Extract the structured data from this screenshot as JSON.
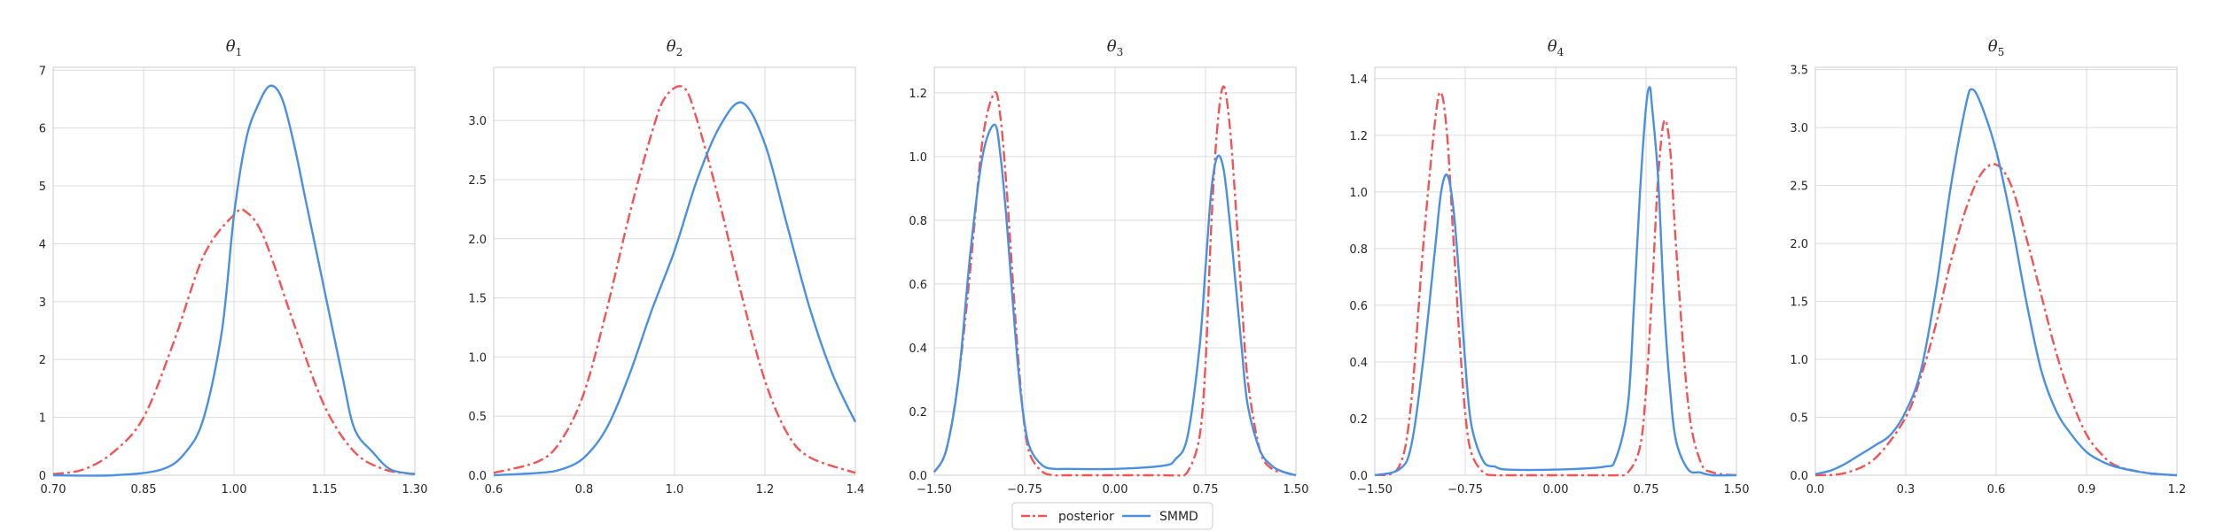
{
  "chart_data": [
    {
      "type": "line",
      "title": "θ",
      "title_sub": "1",
      "xlim": [
        0.7,
        1.3
      ],
      "ylim": [
        0,
        7.05
      ],
      "xticks": [
        0.7,
        0.85,
        1.0,
        1.15,
        1.3
      ],
      "xtick_labels": [
        "0.70",
        "0.85",
        "1.00",
        "1.15",
        "1.30"
      ],
      "yticks": [
        0,
        1,
        2,
        3,
        4,
        5,
        6,
        7
      ],
      "ytick_labels": [
        "0",
        "1",
        "2",
        "3",
        "4",
        "5",
        "6",
        "7"
      ],
      "grid": true,
      "series": [
        {
          "name": "posterior",
          "style": "dashdot",
          "color": "#f05454",
          "x": [
            0.7,
            0.75,
            0.8,
            0.85,
            0.9,
            0.95,
            1.0,
            1.02,
            1.05,
            1.1,
            1.15,
            1.2,
            1.25,
            1.3
          ],
          "y": [
            0.02,
            0.1,
            0.4,
            1.0,
            2.3,
            3.8,
            4.5,
            4.55,
            4.1,
            2.6,
            1.2,
            0.4,
            0.1,
            0.02
          ]
        },
        {
          "name": "SMMD",
          "style": "solid",
          "color": "#4a90e2",
          "x": [
            0.7,
            0.8,
            0.88,
            0.92,
            0.95,
            0.98,
            1.0,
            1.02,
            1.04,
            1.06,
            1.08,
            1.1,
            1.12,
            1.15,
            1.18,
            1.2,
            1.23,
            1.26,
            1.3
          ],
          "y": [
            0.0,
            0.0,
            0.1,
            0.4,
            1.0,
            2.5,
            4.5,
            5.8,
            6.4,
            6.73,
            6.5,
            5.7,
            4.7,
            3.2,
            1.7,
            0.8,
            0.4,
            0.1,
            0.02
          ]
        }
      ]
    },
    {
      "type": "line",
      "title": "θ",
      "title_sub": "2",
      "xlim": [
        0.6,
        1.4
      ],
      "ylim": [
        0,
        3.45
      ],
      "xticks": [
        0.6,
        0.8,
        1.0,
        1.2,
        1.4
      ],
      "xtick_labels": [
        "0.6",
        "0.8",
        "1.0",
        "1.2",
        "1.4"
      ],
      "yticks": [
        0,
        0.5,
        1.0,
        1.5,
        2.0,
        2.5,
        3.0
      ],
      "ytick_labels": [
        "0.0",
        "0.5",
        "1.0",
        "1.5",
        "2.0",
        "2.5",
        "3.0"
      ],
      "grid": true,
      "series": [
        {
          "name": "posterior",
          "style": "dashdot",
          "color": "#f05454",
          "x": [
            0.6,
            0.7,
            0.75,
            0.8,
            0.85,
            0.9,
            0.95,
            0.98,
            1.02,
            1.05,
            1.1,
            1.15,
            1.2,
            1.25,
            1.3,
            1.4
          ],
          "y": [
            0.02,
            0.12,
            0.3,
            0.7,
            1.4,
            2.2,
            2.9,
            3.2,
            3.28,
            3.0,
            2.3,
            1.5,
            0.8,
            0.35,
            0.15,
            0.02
          ]
        },
        {
          "name": "SMMD",
          "style": "solid",
          "color": "#4a90e2",
          "x": [
            0.6,
            0.7,
            0.75,
            0.8,
            0.85,
            0.9,
            0.95,
            1.0,
            1.05,
            1.1,
            1.15,
            1.2,
            1.25,
            1.3,
            1.35,
            1.4
          ],
          "y": [
            0.0,
            0.02,
            0.05,
            0.15,
            0.4,
            0.85,
            1.4,
            1.9,
            2.5,
            2.95,
            3.15,
            2.8,
            2.1,
            1.4,
            0.85,
            0.45
          ]
        }
      ]
    },
    {
      "type": "line",
      "title": "θ",
      "title_sub": "3",
      "xlim": [
        -1.5,
        1.5
      ],
      "ylim": [
        0,
        1.28
      ],
      "xticks": [
        -1.5,
        -0.75,
        0.0,
        0.75,
        1.5
      ],
      "xtick_labels": [
        "−1.50",
        "−0.75",
        "0.00",
        "0.75",
        "1.50"
      ],
      "yticks": [
        0,
        0.2,
        0.4,
        0.6,
        0.8,
        1.0,
        1.2
      ],
      "ytick_labels": [
        "0.0",
        "0.2",
        "0.4",
        "0.6",
        "0.8",
        "1.0",
        "1.2"
      ],
      "grid": true,
      "series": [
        {
          "name": "posterior",
          "style": "dashdot",
          "color": "#f05454",
          "x": [
            -1.5,
            -1.4,
            -1.3,
            -1.2,
            -1.1,
            -1.0,
            -0.95,
            -0.9,
            -0.85,
            -0.8,
            -0.75,
            -0.7,
            -0.6,
            -0.5,
            -0.4,
            0.0,
            0.4,
            0.5,
            0.6,
            0.7,
            0.75,
            0.8,
            0.85,
            0.9,
            0.95,
            1.0,
            1.05,
            1.1,
            1.2,
            1.3,
            1.4,
            1.5
          ],
          "y": [
            0.01,
            0.08,
            0.3,
            0.65,
            1.05,
            1.2,
            1.12,
            0.9,
            0.62,
            0.35,
            0.15,
            0.06,
            0.01,
            0.0,
            0.0,
            0.0,
            0.0,
            0.0,
            0.01,
            0.12,
            0.35,
            0.8,
            1.1,
            1.22,
            1.1,
            0.85,
            0.55,
            0.3,
            0.08,
            0.02,
            0.01,
            0.0
          ]
        },
        {
          "name": "SMMD",
          "style": "solid",
          "color": "#4a90e2",
          "x": [
            -1.5,
            -1.4,
            -1.3,
            -1.2,
            -1.1,
            -1.0,
            -0.95,
            -0.9,
            -0.85,
            -0.8,
            -0.75,
            -0.7,
            -0.6,
            -0.5,
            -0.4,
            0.0,
            0.4,
            0.5,
            0.6,
            0.7,
            0.75,
            0.8,
            0.85,
            0.9,
            0.95,
            1.0,
            1.05,
            1.1,
            1.2,
            1.3,
            1.4,
            1.5
          ],
          "y": [
            0.01,
            0.08,
            0.3,
            0.7,
            1.0,
            1.1,
            1.0,
            0.8,
            0.55,
            0.32,
            0.16,
            0.08,
            0.03,
            0.02,
            0.02,
            0.02,
            0.03,
            0.05,
            0.12,
            0.4,
            0.65,
            0.9,
            1.0,
            0.96,
            0.8,
            0.6,
            0.4,
            0.22,
            0.08,
            0.03,
            0.01,
            0.0
          ]
        }
      ]
    },
    {
      "type": "line",
      "title": "θ",
      "title_sub": "4",
      "xlim": [
        -1.5,
        1.5
      ],
      "ylim": [
        0,
        1.44
      ],
      "xticks": [
        -1.5,
        -0.75,
        0.0,
        0.75,
        1.5
      ],
      "xtick_labels": [
        "−1.50",
        "−0.75",
        "0.00",
        "0.75",
        "1.50"
      ],
      "yticks": [
        0,
        0.2,
        0.4,
        0.6,
        0.8,
        1.0,
        1.2,
        1.4
      ],
      "ytick_labels": [
        "0.0",
        "0.2",
        "0.4",
        "0.6",
        "0.8",
        "1.0",
        "1.2",
        "1.4"
      ],
      "grid": true,
      "series": [
        {
          "name": "posterior",
          "style": "dashdot",
          "color": "#f05454",
          "x": [
            -1.5,
            -1.3,
            -1.2,
            -1.1,
            -1.0,
            -0.95,
            -0.9,
            -0.85,
            -0.8,
            -0.75,
            -0.7,
            -0.6,
            -0.5,
            -0.4,
            0.0,
            0.4,
            0.5,
            0.6,
            0.7,
            0.75,
            0.8,
            0.85,
            0.9,
            0.95,
            1.0,
            1.1,
            1.2,
            1.3,
            1.5
          ],
          "y": [
            0.0,
            0.03,
            0.25,
            0.8,
            1.25,
            1.35,
            1.2,
            0.85,
            0.5,
            0.22,
            0.08,
            0.01,
            0.0,
            0.0,
            0.0,
            0.0,
            0.0,
            0.01,
            0.1,
            0.3,
            0.65,
            1.05,
            1.25,
            1.15,
            0.8,
            0.25,
            0.05,
            0.01,
            0.0
          ]
        },
        {
          "name": "SMMD",
          "style": "solid",
          "color": "#4a90e2",
          "x": [
            -1.5,
            -1.3,
            -1.2,
            -1.1,
            -1.0,
            -0.95,
            -0.9,
            -0.85,
            -0.8,
            -0.75,
            -0.7,
            -0.6,
            -0.5,
            -0.4,
            0.0,
            0.4,
            0.5,
            0.6,
            0.65,
            0.7,
            0.75,
            0.78,
            0.8,
            0.85,
            0.9,
            0.95,
            1.0,
            1.1,
            1.2,
            1.3,
            1.5
          ],
          "y": [
            0.0,
            0.02,
            0.1,
            0.4,
            0.8,
            1.0,
            1.06,
            0.95,
            0.7,
            0.4,
            0.18,
            0.05,
            0.03,
            0.02,
            0.02,
            0.03,
            0.06,
            0.25,
            0.6,
            1.0,
            1.3,
            1.37,
            1.3,
            1.05,
            0.6,
            0.3,
            0.12,
            0.02,
            0.01,
            0.0,
            0.0
          ]
        }
      ]
    },
    {
      "type": "line",
      "title": "θ",
      "title_sub": "5",
      "xlim": [
        0.0,
        1.2
      ],
      "ylim": [
        0,
        3.52
      ],
      "xticks": [
        0.0,
        0.3,
        0.6,
        0.9,
        1.2
      ],
      "xtick_labels": [
        "0.0",
        "0.3",
        "0.6",
        "0.9",
        "1.2"
      ],
      "yticks": [
        0,
        0.5,
        1.0,
        1.5,
        2.0,
        2.5,
        3.0,
        3.5
      ],
      "ytick_labels": [
        "0.0",
        "0.5",
        "1.0",
        "1.5",
        "2.0",
        "2.5",
        "3.0",
        "3.5"
      ],
      "grid": true,
      "series": [
        {
          "name": "posterior",
          "style": "dashdot",
          "color": "#f05454",
          "x": [
            0.0,
            0.1,
            0.2,
            0.3,
            0.35,
            0.4,
            0.45,
            0.5,
            0.55,
            0.6,
            0.65,
            0.7,
            0.75,
            0.8,
            0.85,
            0.9,
            0.95,
            1.0,
            1.1,
            1.2
          ],
          "y": [
            0.0,
            0.02,
            0.15,
            0.5,
            0.85,
            1.3,
            1.85,
            2.3,
            2.6,
            2.68,
            2.5,
            2.05,
            1.55,
            1.05,
            0.65,
            0.35,
            0.18,
            0.08,
            0.02,
            0.0
          ]
        },
        {
          "name": "SMMD",
          "style": "solid",
          "color": "#4a90e2",
          "x": [
            0.0,
            0.05,
            0.1,
            0.15,
            0.2,
            0.25,
            0.3,
            0.35,
            0.4,
            0.45,
            0.5,
            0.52,
            0.55,
            0.6,
            0.65,
            0.7,
            0.75,
            0.8,
            0.85,
            0.9,
            0.95,
            1.0,
            1.1,
            1.2
          ],
          "y": [
            0.01,
            0.04,
            0.1,
            0.18,
            0.26,
            0.35,
            0.55,
            0.9,
            1.6,
            2.5,
            3.2,
            3.33,
            3.2,
            2.8,
            2.2,
            1.5,
            0.9,
            0.55,
            0.35,
            0.2,
            0.12,
            0.07,
            0.02,
            0.0
          ]
        }
      ]
    }
  ],
  "legend": {
    "placement": "bottom-center",
    "entries": [
      {
        "label": "posterior",
        "color": "#f05454",
        "style": "dashdot"
      },
      {
        "label": "SMMD",
        "color": "#4a90e2",
        "style": "solid"
      }
    ]
  }
}
